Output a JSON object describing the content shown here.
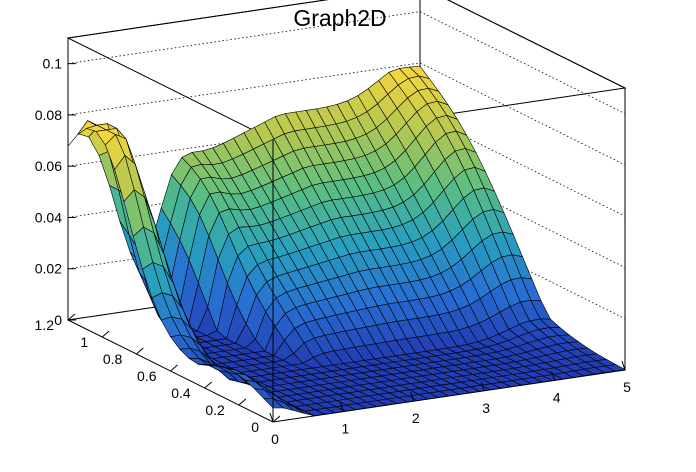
{
  "chart_data": {
    "type": "surface",
    "title": "Graph2D",
    "xlabel": "",
    "ylabel": "",
    "zlabel": "",
    "xlim": [
      0,
      5
    ],
    "ylim": [
      0,
      1.2
    ],
    "zlim": [
      0,
      0.11
    ],
    "x_ticks": [
      "0",
      "1",
      "2",
      "3",
      "4",
      "5"
    ],
    "y_ticks": [
      "0",
      "0.2",
      "0.4",
      "0.6",
      "0.8",
      "1",
      "1.2"
    ],
    "z_ticks": [
      "0",
      "0.02",
      "0.04",
      "0.06",
      "0.08",
      "0.1"
    ],
    "grid": "z-dotted",
    "colormap": "viridis-like",
    "surface_estimate": [
      {
        "x": 0.0,
        "y": 1.2,
        "z": 0.045
      },
      {
        "x": 0.0,
        "y": 1.0,
        "z": 0.072
      },
      {
        "x": 0.0,
        "y": 0.6,
        "z": 0.03
      },
      {
        "x": 0.0,
        "y": 0.0,
        "z": 0.0
      },
      {
        "x": 0.5,
        "y": 0.6,
        "z": 0.01
      },
      {
        "x": 1.5,
        "y": 1.0,
        "z": 0.075
      },
      {
        "x": 3.0,
        "y": 1.0,
        "z": 0.068
      },
      {
        "x": 5.0,
        "y": 1.0,
        "z": 0.06
      },
      {
        "x": 5.0,
        "y": 0.6,
        "z": 0.02
      },
      {
        "x": 5.0,
        "y": 0.2,
        "z": 0.005
      }
    ]
  }
}
